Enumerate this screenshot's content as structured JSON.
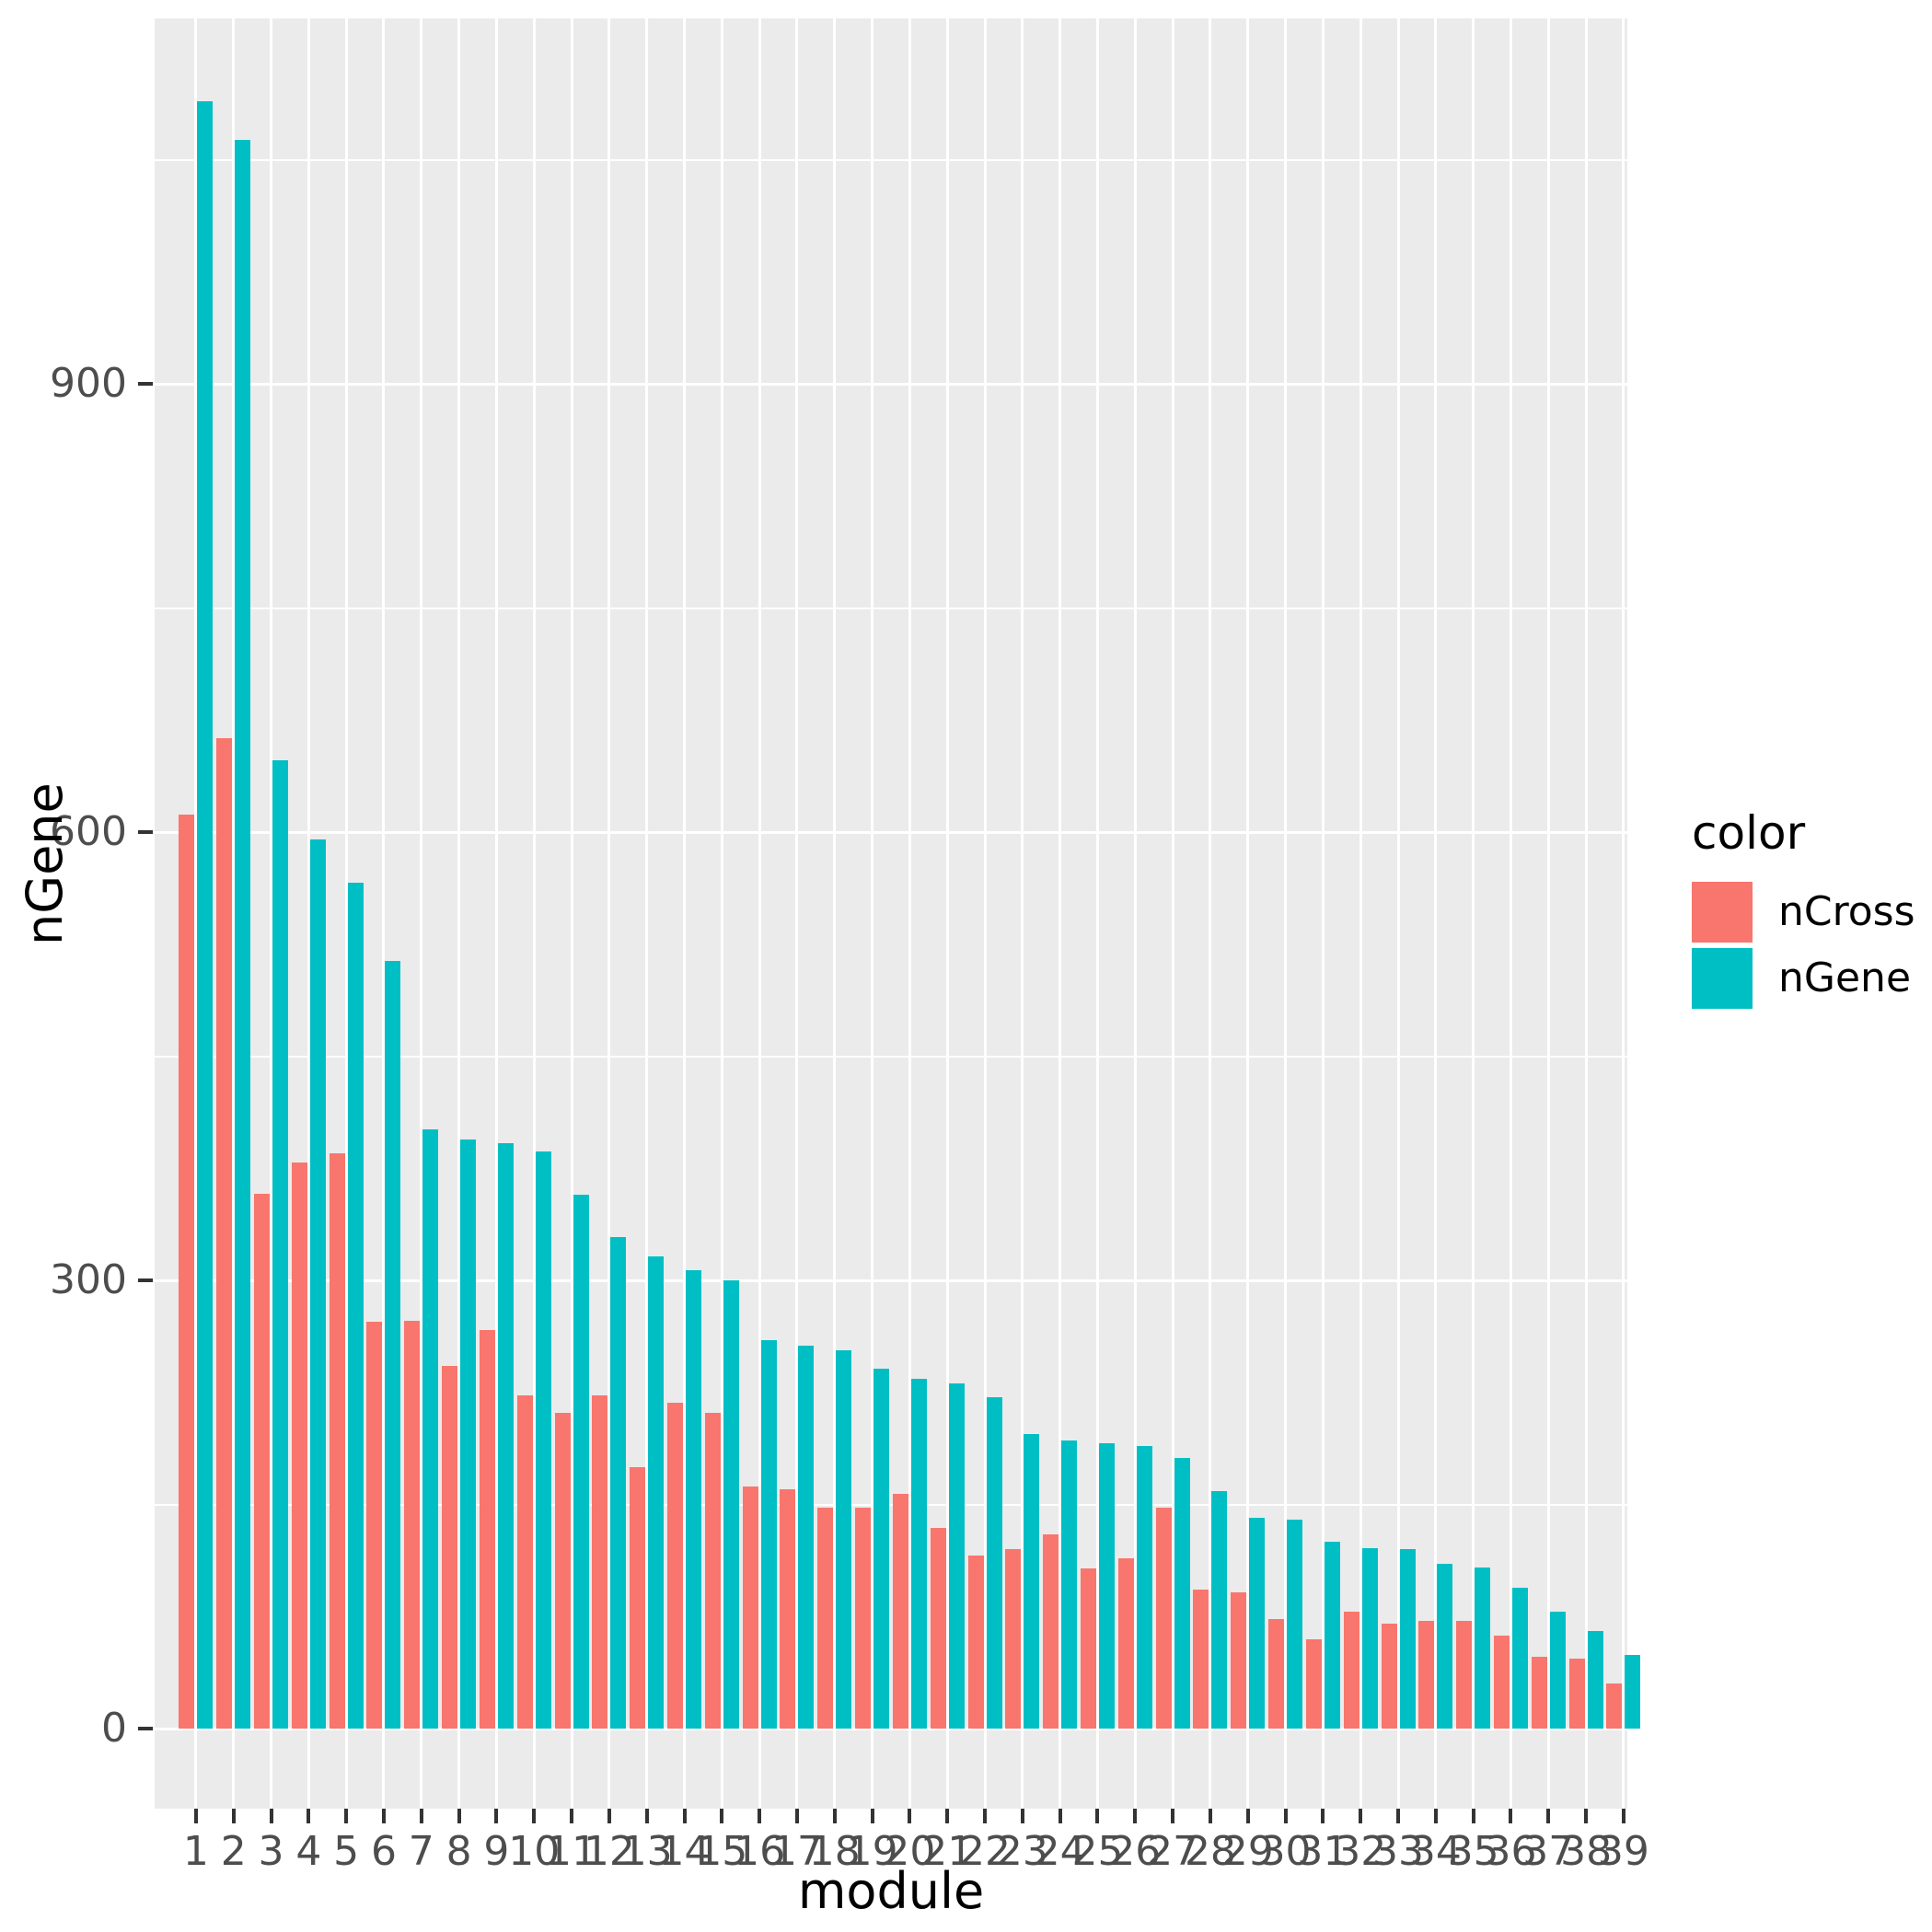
{
  "axes": {
    "x_title": "module",
    "y_title": "nGene",
    "y_major_ticks": [
      0,
      300,
      600,
      900
    ],
    "y_minor_ticks": [
      150,
      450,
      750,
      1050
    ]
  },
  "legend": {
    "title": "color",
    "items": [
      {
        "label": "nCross",
        "color": "#F8766D"
      },
      {
        "label": "nGene",
        "color": "#00BFC4"
      }
    ]
  },
  "colors": {
    "panel_background": "#EBEBEB",
    "gridline": "#FFFFFF",
    "tick_text": "#4D4D4D",
    "tick_mark": "#333333",
    "ncross": "#F8766D",
    "ngene": "#00BFC4"
  },
  "chart_data": {
    "type": "bar",
    "title": "",
    "xlabel": "module",
    "ylabel": "nGene",
    "ylim": [
      0,
      1143
    ],
    "grid": true,
    "legend_position": "right",
    "categories": [
      "1",
      "2",
      "3",
      "4",
      "5",
      "6",
      "7",
      "8",
      "9",
      "10",
      "11",
      "12",
      "13",
      "14",
      "15",
      "16",
      "17",
      "18",
      "19",
      "20",
      "21",
      "22",
      "23",
      "24",
      "25",
      "26",
      "27",
      "28",
      "29",
      "30",
      "31",
      "32",
      "33",
      "34",
      "35",
      "36",
      "37",
      "38",
      "39"
    ],
    "series": [
      {
        "name": "nCross",
        "color": "#F8766D",
        "values": [
          612,
          663,
          358,
          379,
          385,
          272,
          273,
          243,
          267,
          223,
          211,
          223,
          175,
          218,
          211,
          162,
          160,
          148,
          148,
          157,
          134,
          116,
          120,
          130,
          107,
          114,
          148,
          93,
          91,
          73,
          60,
          78,
          70,
          72,
          72,
          62,
          48,
          47,
          30
        ]
      },
      {
        "name": "nGene",
        "color": "#00BFC4",
        "values": [
          1089,
          1063,
          648,
          595,
          566,
          514,
          401,
          394,
          392,
          386,
          357,
          329,
          316,
          307,
          300,
          260,
          256,
          253,
          241,
          234,
          231,
          222,
          197,
          193,
          191,
          189,
          181,
          159,
          141,
          140,
          125,
          121,
          120,
          110,
          108,
          94,
          78,
          65,
          49
        ]
      }
    ]
  }
}
